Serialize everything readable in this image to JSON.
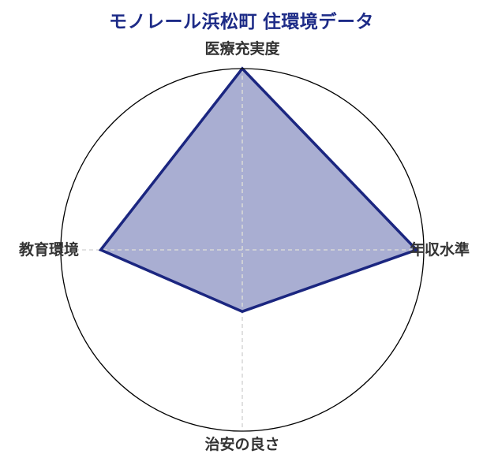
{
  "chart_data": {
    "type": "radar",
    "title": "モノレール浜松町 住環境データ",
    "categories": [
      "医療充実度",
      "年収水準",
      "治安の良さ",
      "教育環境"
    ],
    "category_positions": [
      "top",
      "right",
      "bottom",
      "left"
    ],
    "values": [
      5.0,
      4.8,
      1.7,
      3.9
    ],
    "scale_min": 0,
    "scale_max": 5,
    "legend_position": "none",
    "grid": {
      "style": "dashed-cross-axes",
      "outer_ring": "circle",
      "radial_tick_labels": "none"
    },
    "colors": {
      "title": "#1d2b87",
      "polygon_fill": "#a9aed2",
      "polygon_stroke": "#1b2680",
      "axis_label": "#333333",
      "outer_circle": "#000000",
      "gridline": "#d8d8d8",
      "background": "#ffffff"
    }
  }
}
